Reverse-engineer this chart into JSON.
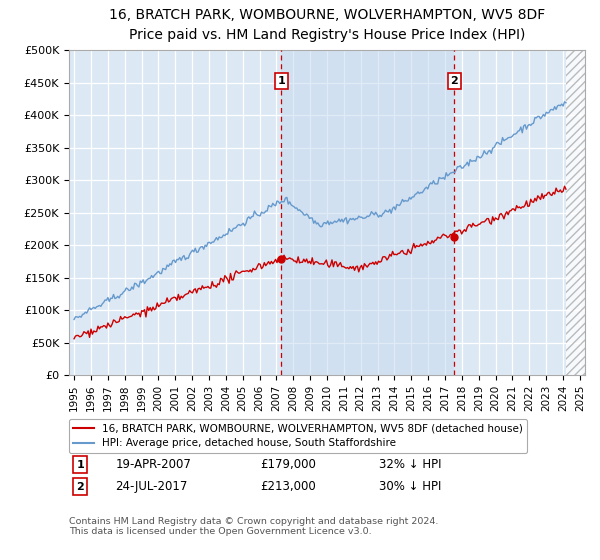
{
  "title": "16, BRATCH PARK, WOMBOURNE, WOLVERHAMPTON, WV5 8DF",
  "subtitle": "Price paid vs. HM Land Registry's House Price Index (HPI)",
  "ylabel_ticks": [
    "£0",
    "£50K",
    "£100K",
    "£150K",
    "£200K",
    "£250K",
    "£300K",
    "£350K",
    "£400K",
    "£450K",
    "£500K"
  ],
  "ytick_values": [
    0,
    50000,
    100000,
    150000,
    200000,
    250000,
    300000,
    350000,
    400000,
    450000,
    500000
  ],
  "xlim_start": 1994.7,
  "xlim_end": 2025.3,
  "ylim_min": 0,
  "ylim_max": 500000,
  "bg_color": "#dce9f5",
  "red_line_color": "#cc0000",
  "blue_line_color": "#6699cc",
  "marker1_year": 2007.3,
  "marker1_price": 179000,
  "marker2_year": 2017.55,
  "marker2_price": 213000,
  "vline_color": "#cc0000",
  "shade_color": "#c5d8ee",
  "hatch_start": 2024.17,
  "legend_line1": "16, BRATCH PARK, WOMBOURNE, WOLVERHAMPTON, WV5 8DF (detached house)",
  "legend_line2": "HPI: Average price, detached house, South Staffordshire",
  "ann1_box_label": "1",
  "ann1_date": "19-APR-2007",
  "ann1_price": "£179,000",
  "ann1_pct": "32% ↓ HPI",
  "ann2_box_label": "2",
  "ann2_date": "24-JUL-2017",
  "ann2_price": "£213,000",
  "ann2_pct": "30% ↓ HPI",
  "footer": "Contains HM Land Registry data © Crown copyright and database right 2024.\nThis data is licensed under the Open Government Licence v3.0."
}
